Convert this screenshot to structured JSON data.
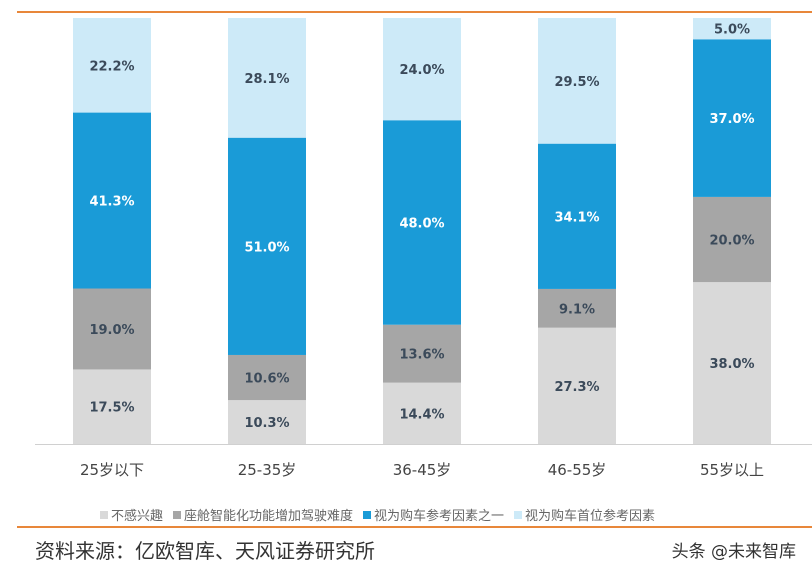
{
  "chart_data": {
    "type": "bar",
    "stacked": true,
    "categories": [
      "25岁以下",
      "25-35岁",
      "36-45岁",
      "46-55岁",
      "55岁以上"
    ],
    "series": [
      {
        "name": "不感兴趣",
        "color": "#d9d9d9",
        "values": [
          17.5,
          10.3,
          14.4,
          27.3,
          38.0
        ]
      },
      {
        "name": "座舱智能化功能增加驾驶难度",
        "color": "#a6a6a6",
        "values": [
          19.0,
          10.6,
          13.6,
          9.1,
          20.0
        ]
      },
      {
        "name": "视为购车参考因素之一",
        "color": "#1a9bd7",
        "values": [
          41.3,
          51.0,
          48.0,
          34.1,
          37.0
        ]
      },
      {
        "name": "视为购车首位参考因素",
        "color": "#cdeaf8",
        "values": [
          22.2,
          28.1,
          24.0,
          29.5,
          5.0
        ]
      }
    ],
    "ylim": [
      0,
      100
    ],
    "legend": "bottom"
  },
  "source": "资料来源：亿欧智库、天风证券研究所",
  "watermark": "头条 @未来智库"
}
